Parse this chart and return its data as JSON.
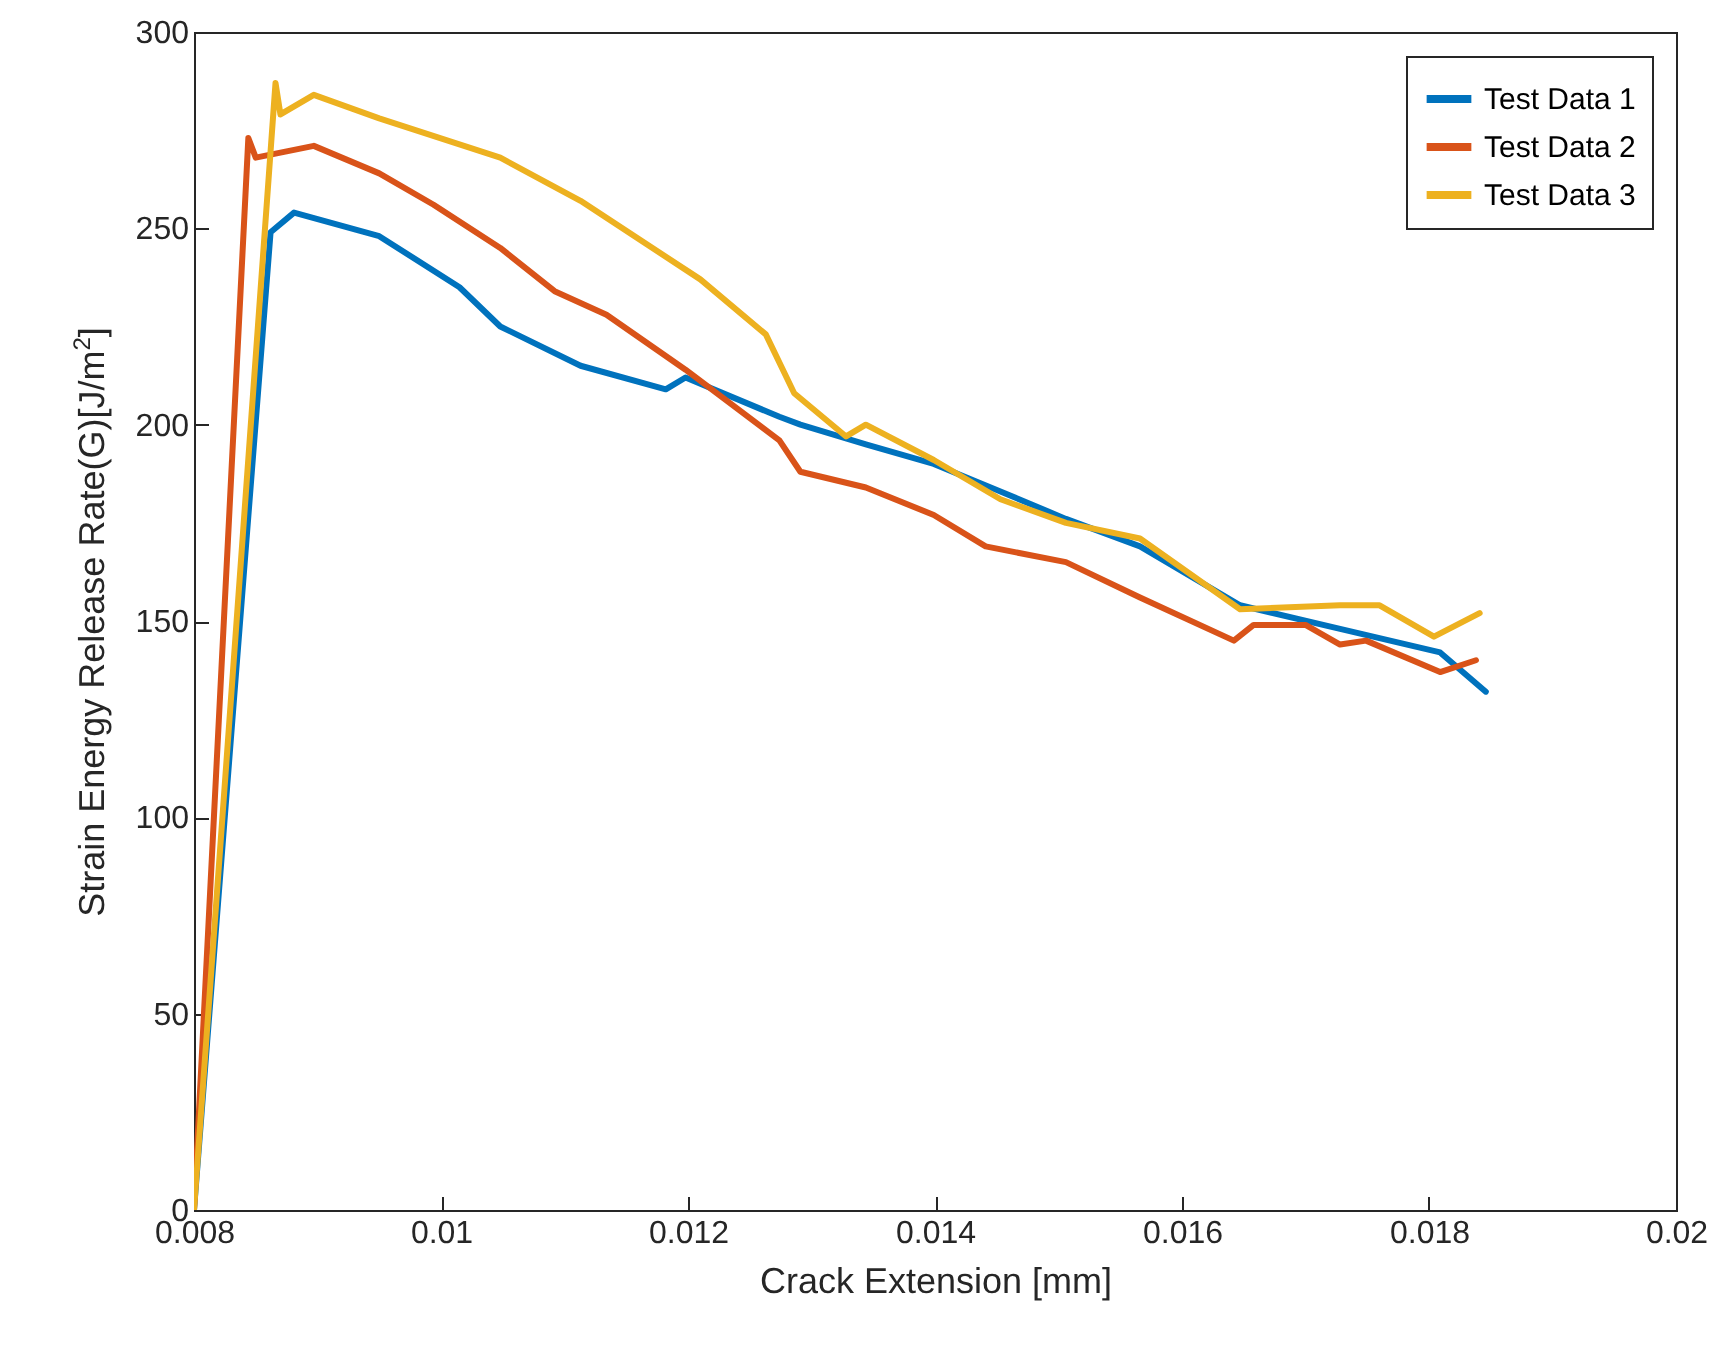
{
  "chart_data": {
    "type": "line",
    "xlabel": "Crack Extension [mm]",
    "ylabel": "Strain Energy Release Rate(G)[J/m$^{2}$]",
    "xlim": [
      0.008,
      0.02
    ],
    "xticks": [
      0.008,
      0.01,
      0.012,
      0.014,
      0.016,
      0.018,
      0.02
    ],
    "ylim": [
      0,
      300
    ],
    "yticks": [
      0,
      50,
      100,
      150,
      200,
      250,
      300
    ],
    "legend": "top right",
    "line_style": "solid",
    "series": [
      {
        "name": "Test Data 1",
        "color": "#0072bd",
        "x": [
          0.008,
          0.00862,
          0.00881,
          0.0095,
          0.01015,
          0.01048,
          0.01113,
          0.01182,
          0.01198,
          0.01274,
          0.01291,
          0.01344,
          0.01399,
          0.01453,
          0.01506,
          0.01566,
          0.01647,
          0.01728,
          0.01809,
          0.01846
        ],
        "values": [
          0,
          249,
          254,
          248,
          235,
          225,
          215,
          209,
          212,
          202,
          200,
          195,
          190,
          183,
          176,
          169,
          154,
          148,
          142,
          132
        ]
      },
      {
        "name": "Test Data 2",
        "color": "#d95319",
        "x": [
          0.008,
          0.00844,
          0.0085,
          0.00897,
          0.0095,
          0.00994,
          0.01048,
          0.01092,
          0.01134,
          0.01198,
          0.01274,
          0.01291,
          0.01344,
          0.01399,
          0.01441,
          0.01506,
          0.01566,
          0.01642,
          0.01658,
          0.017,
          0.01728,
          0.01749,
          0.01809,
          0.01838
        ],
        "values": [
          0,
          273,
          268,
          271,
          264,
          256,
          245,
          234,
          228,
          214,
          196,
          188,
          184,
          177,
          169,
          165,
          156,
          145,
          149,
          149,
          144,
          145,
          137,
          140
        ]
      },
      {
        "name": "Test Data 3",
        "color": "#edb120",
        "x": [
          0.008,
          0.00866,
          0.0087,
          0.00897,
          0.0095,
          0.01048,
          0.01113,
          0.0121,
          0.01263,
          0.01286,
          0.01328,
          0.01344,
          0.01399,
          0.01453,
          0.01506,
          0.01566,
          0.01647,
          0.01728,
          0.0176,
          0.01804,
          0.01841
        ],
        "values": [
          0,
          287,
          279,
          284,
          278,
          268,
          257,
          237,
          223,
          208,
          197,
          200,
          191,
          181,
          175,
          171,
          153,
          154,
          154,
          146,
          152
        ]
      }
    ]
  }
}
